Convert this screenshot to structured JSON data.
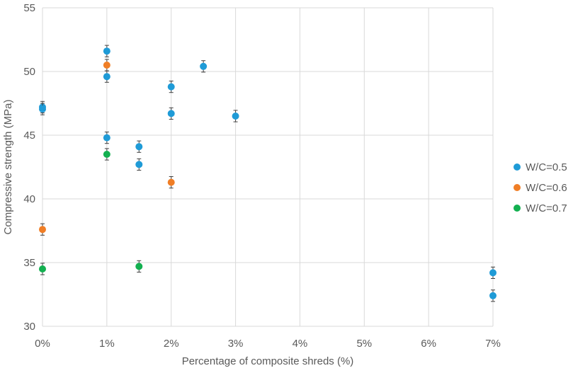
{
  "chart_data": {
    "type": "scatter",
    "title": "",
    "xlabel": "Percentage of composite shreds (%)",
    "ylabel": "Compressive strength (MPa)",
    "xlim": [
      0,
      7
    ],
    "ylim": [
      30,
      55
    ],
    "x_ticks": [
      0,
      1,
      2,
      3,
      4,
      5,
      6,
      7
    ],
    "x_tick_labels": [
      "0%",
      "1%",
      "2%",
      "3%",
      "4%",
      "5%",
      "6%",
      "7%"
    ],
    "y_ticks": [
      30,
      35,
      40,
      45,
      50,
      55
    ],
    "y_tick_labels": [
      "30",
      "35",
      "40",
      "45",
      "50",
      "55"
    ],
    "grid": true,
    "legend_position": "right",
    "error_bar": 0.45,
    "series": [
      {
        "name": "W/C=0.5",
        "color": "#1f9bd7",
        "points": [
          {
            "x": 0,
            "y": 47.2
          },
          {
            "x": 0,
            "y": 47.05
          },
          {
            "x": 1,
            "y": 51.6
          },
          {
            "x": 1,
            "y": 49.6
          },
          {
            "x": 1,
            "y": 44.8
          },
          {
            "x": 1.5,
            "y": 44.1
          },
          {
            "x": 1.5,
            "y": 42.7
          },
          {
            "x": 2,
            "y": 48.8
          },
          {
            "x": 2,
            "y": 46.7
          },
          {
            "x": 2.5,
            "y": 50.4
          },
          {
            "x": 3,
            "y": 46.5
          },
          {
            "x": 7,
            "y": 34.2
          },
          {
            "x": 7,
            "y": 32.4
          }
        ]
      },
      {
        "name": "W/C=0.6",
        "color": "#f07e26",
        "points": [
          {
            "x": 0,
            "y": 37.6
          },
          {
            "x": 1,
            "y": 50.5
          },
          {
            "x": 2,
            "y": 41.3
          }
        ]
      },
      {
        "name": "W/C=0.7",
        "color": "#13b050",
        "points": [
          {
            "x": 0,
            "y": 34.5
          },
          {
            "x": 1,
            "y": 43.5
          },
          {
            "x": 1.5,
            "y": 34.7
          }
        ]
      }
    ]
  }
}
